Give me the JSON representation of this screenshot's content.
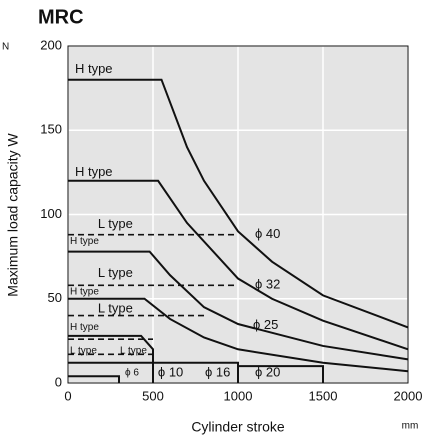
{
  "chart_data": {
    "type": "line",
    "title": "MRC",
    "y_label": "Maximum load capacity  W",
    "y_unit": "N",
    "x_label": "Cylinder stroke",
    "x_unit": "mm",
    "xlim": [
      0,
      2000
    ],
    "ylim": [
      0,
      200
    ],
    "xticks": [
      0,
      500,
      1000,
      1500,
      2000
    ],
    "yticks": [
      0,
      50,
      100,
      150,
      200
    ],
    "grid": true,
    "background": "#e4e4e4",
    "color": "#111111",
    "series": [
      {
        "x": [
          0,
          550,
          700,
          800,
          1000,
          1200,
          1500,
          2000
        ],
        "values": [
          180,
          180,
          140,
          120,
          90,
          72,
          52,
          33
        ]
      },
      {
        "x": [
          0,
          530,
          700,
          1000,
          1200,
          1500,
          2000
        ],
        "values": [
          120,
          120,
          95,
          62,
          50,
          37,
          20
        ]
      },
      {
        "x": [
          0,
          480,
          600,
          800,
          1000,
          1500,
          2000
        ],
        "values": [
          78,
          78,
          64,
          45,
          35,
          22,
          14
        ]
      },
      {
        "x": [
          0,
          450,
          600,
          800,
          1000,
          1500,
          2000
        ],
        "values": [
          50,
          50,
          38,
          27,
          20,
          12,
          7
        ]
      },
      {
        "x": [
          0,
          430,
          500,
          500
        ],
        "values": [
          28,
          28,
          20,
          0
        ]
      },
      {
        "x": [
          0,
          300,
          300
        ],
        "values": [
          4,
          4,
          0
        ]
      },
      {
        "x": [
          0,
          500,
          500
        ],
        "values": [
          12,
          12,
          0
        ]
      },
      {
        "x": [
          500,
          1000,
          1000
        ],
        "values": [
          12,
          12,
          0
        ]
      },
      {
        "x": [
          1000,
          1500,
          1500
        ],
        "values": [
          10,
          10,
          0
        ]
      },
      {
        "x": [
          0,
          1000
        ],
        "values": [
          88,
          88
        ],
        "dash": true
      },
      {
        "x": [
          0,
          1000
        ],
        "values": [
          58,
          58
        ],
        "dash": true
      },
      {
        "x": [
          0,
          800
        ],
        "values": [
          40,
          40
        ],
        "dash": true
      },
      {
        "x": [
          0,
          500
        ],
        "values": [
          26,
          26
        ],
        "dash": true
      },
      {
        "x": [
          0,
          500
        ],
        "values": [
          17,
          17
        ],
        "dash": true
      }
    ],
    "annotations": [
      {
        "text": "H type",
        "x": 41,
        "y": 186
      },
      {
        "text": "H type",
        "x": 41,
        "y": 125
      },
      {
        "text": "L type",
        "x": 176,
        "y": 94
      },
      {
        "text": "H type",
        "x": 12,
        "y": 84,
        "size": "small"
      },
      {
        "text": "ϕ 40",
        "x": 1100,
        "y": 88
      },
      {
        "text": "L type",
        "x": 176,
        "y": 65
      },
      {
        "text": "H type",
        "x": 12,
        "y": 54,
        "size": "small"
      },
      {
        "text": "ϕ 32",
        "x": 1100,
        "y": 58
      },
      {
        "text": "L type",
        "x": 176,
        "y": 44
      },
      {
        "text": "H type",
        "x": 12,
        "y": 33,
        "size": "small"
      },
      {
        "text": "ϕ 25",
        "x": 1088,
        "y": 34
      },
      {
        "text": "L type",
        "x": 12,
        "y": 19,
        "size": "small"
      },
      {
        "text": "L type",
        "x": 306,
        "y": 19,
        "size": "small"
      },
      {
        "text": "ϕ 6",
        "x": 335,
        "y": 6,
        "size": "small"
      },
      {
        "text": "ϕ 10",
        "x": 529,
        "y": 6
      },
      {
        "text": "ϕ 16",
        "x": 806,
        "y": 6
      },
      {
        "text": "ϕ 20",
        "x": 1100,
        "y": 6
      }
    ]
  }
}
